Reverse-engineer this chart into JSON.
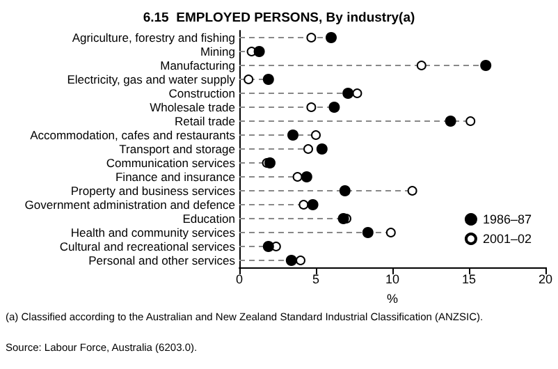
{
  "chart_data": {
    "type": "scatter",
    "orientation": "horizontal",
    "title": "6.15  EMPLOYED PERSONS, By industry(a)",
    "xlabel": "%",
    "categories": [
      "Agriculture, forestry and fishing",
      "Mining",
      "Manufacturing",
      "Electricity, gas and water supply",
      "Construction",
      "Wholesale trade",
      "Retail trade",
      "Accommodation, cafes and restaurants",
      "Transport and storage",
      "Communication services",
      "Finance and insurance",
      "Property and business services",
      "Government administration and defence",
      "Education",
      "Health and community services",
      "Cultural and recreational services",
      "Personal and other services"
    ],
    "series": [
      {
        "name": "1986–87",
        "color": "#000000",
        "values": [
          6.0,
          1.3,
          16.1,
          1.9,
          7.1,
          6.2,
          13.8,
          3.5,
          5.4,
          2.0,
          4.4,
          6.9,
          4.8,
          6.8,
          8.4,
          1.9,
          3.4
        ]
      },
      {
        "name": "2001–02",
        "color": "#ffffff",
        "values": [
          4.7,
          0.8,
          11.9,
          0.6,
          7.7,
          4.7,
          15.1,
          5.0,
          4.5,
          1.8,
          3.8,
          11.3,
          4.2,
          7.0,
          9.9,
          2.4,
          4.0
        ]
      }
    ],
    "xlim": [
      0,
      20
    ],
    "xticks": [
      0,
      5,
      10,
      15,
      20
    ],
    "grid": "y",
    "line_style": "dashed",
    "marker": "circle",
    "legend": "bottom right",
    "annotations": [
      "(a) Classified according to the Australian and New Zealand Standard Industrial Classification (ANZSIC).",
      "Source: Labour Force, Australia (6203.0)."
    ]
  }
}
